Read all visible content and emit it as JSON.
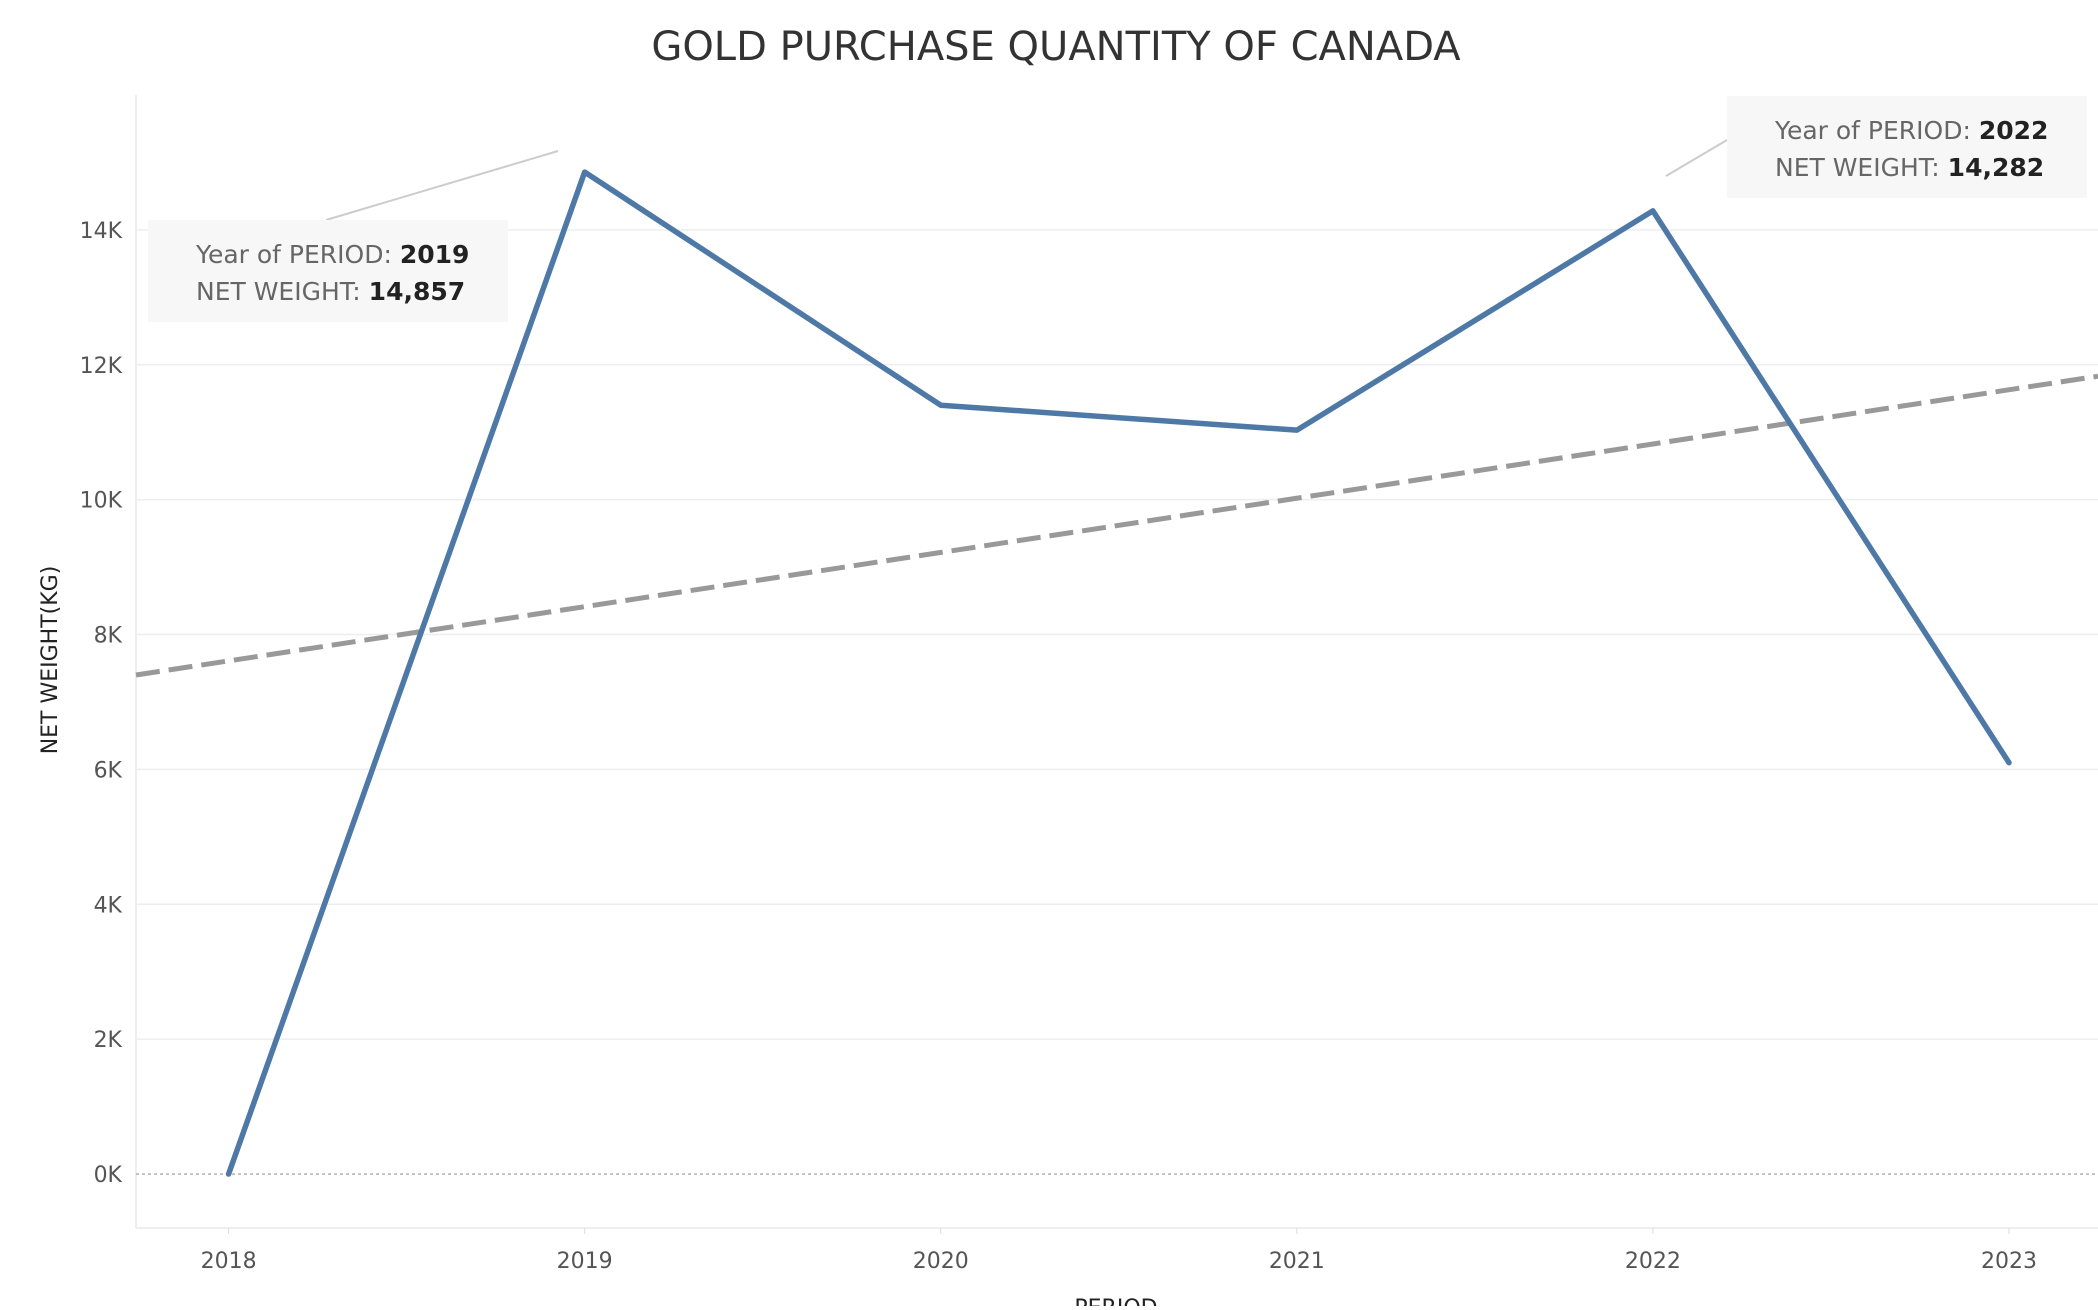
{
  "chart_data": {
    "type": "line",
    "title": "GOLD PURCHASE QUANTITY OF CANADA",
    "xlabel": "PERIOD",
    "ylabel": "NET WEIGHT(KG)",
    "x": [
      2018,
      2019,
      2020,
      2021,
      2022,
      2023
    ],
    "series": [
      {
        "values": [
          0,
          14857,
          11400,
          11030,
          14282,
          6100
        ],
        "color": "#4e79a7"
      }
    ],
    "trend_line": {
      "style": "dashed",
      "color": "#999999",
      "x_range": [
        2017.74,
        2023.25
      ],
      "y_range": [
        7400,
        11830
      ]
    },
    "xlim": [
      2017.74,
      2023.25
    ],
    "ylim": [
      -800,
      16000
    ],
    "y_ticks": [
      0,
      2000,
      4000,
      6000,
      8000,
      10000,
      12000,
      14000
    ],
    "y_tick_labels": [
      "0K",
      "2K",
      "4K",
      "6K",
      "8K",
      "10K",
      "12K",
      "14K"
    ],
    "x_tick_labels": [
      "2018",
      "2019",
      "2020",
      "2021",
      "2022",
      "2023"
    ],
    "grid": true,
    "zero_line": "dotted",
    "annotations": [
      {
        "x": 2019,
        "y": 14857,
        "line1_label": "Year of PERIOD",
        "line1_value": "2019",
        "line2_label": "NET WEIGHT",
        "line2_value": "14,857"
      },
      {
        "x": 2022,
        "y": 14282,
        "line1_label": "Year of PERIOD",
        "line1_value": "2022",
        "line2_label": "NET WEIGHT",
        "line2_value": "14,282"
      }
    ]
  }
}
